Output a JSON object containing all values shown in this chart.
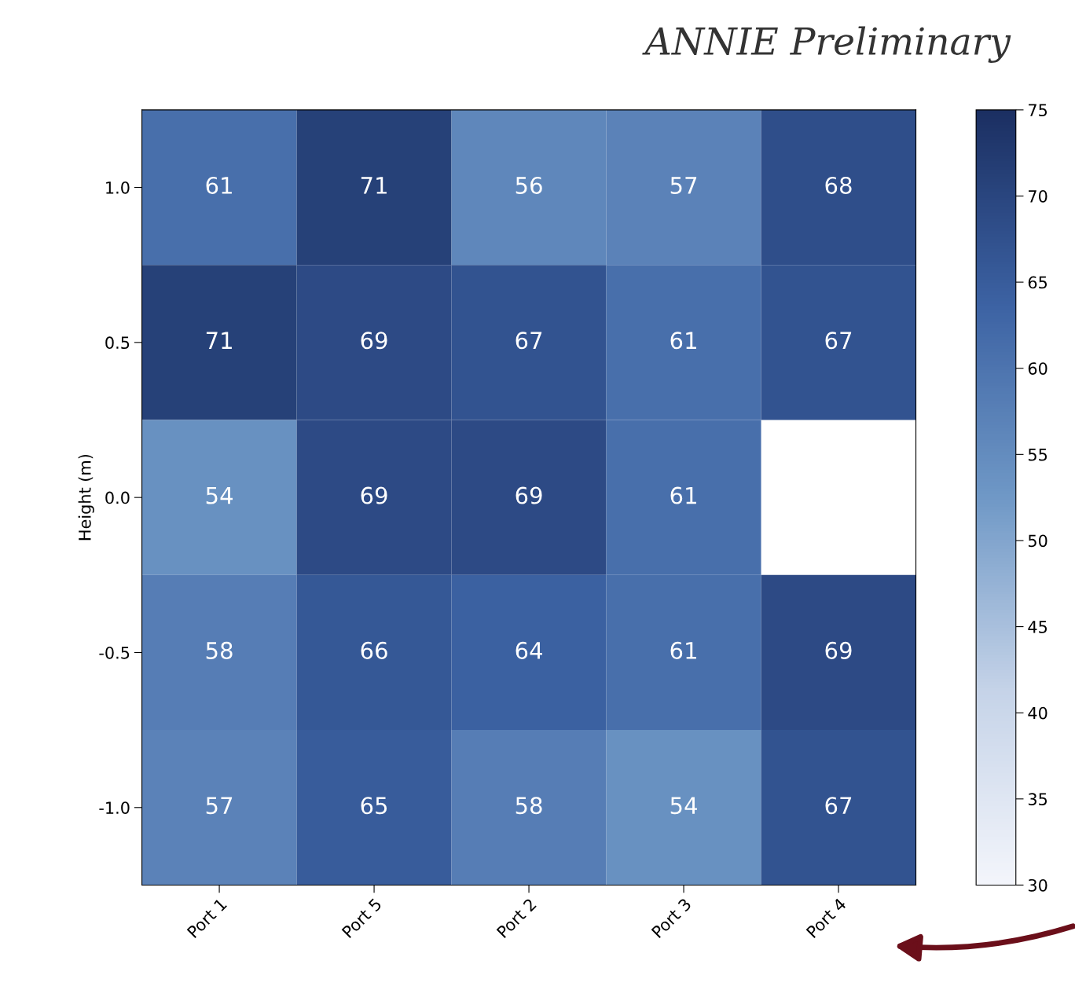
{
  "chart_data": {
    "type": "heatmap",
    "title": "ANNIE Preliminary",
    "ylabel": "Height (m)",
    "categories": [
      "Port 1",
      "Port 5",
      "Port 2",
      "Port 3",
      "Port 4"
    ],
    "y_categories": [
      "1.0",
      "0.5",
      "0.0",
      "-0.5",
      "-1.0"
    ],
    "cells": [
      [
        61,
        71,
        56,
        57,
        68
      ],
      [
        71,
        69,
        67,
        61,
        67
      ],
      [
        54,
        69,
        69,
        61,
        null
      ],
      [
        58,
        66,
        64,
        61,
        69
      ],
      [
        57,
        65,
        58,
        54,
        67
      ]
    ],
    "data_labels": true,
    "clim": [
      30,
      75
    ],
    "cticks": [
      30,
      35,
      40,
      45,
      50,
      55,
      60,
      65,
      70,
      75
    ]
  }
}
